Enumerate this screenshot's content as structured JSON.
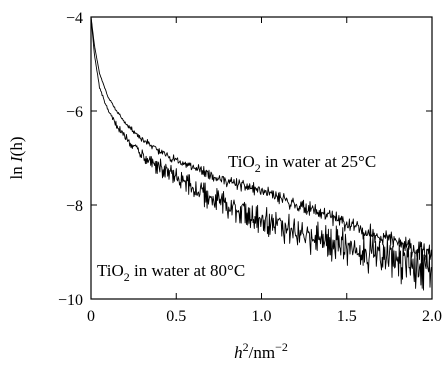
{
  "chart_data": {
    "type": "line",
    "xlabel": {
      "main": "h",
      "sup": "2",
      "unit": "/nm",
      "unit_sup": "−2"
    },
    "ylabel": {
      "prefix": "ln ",
      "italic": "I",
      "suffix": "(h)"
    },
    "xlim": [
      0,
      2.0
    ],
    "ylim": [
      -10,
      -4
    ],
    "xticks": [
      0,
      0.5,
      1.0,
      1.5,
      2.0
    ],
    "xtick_labels": [
      "0",
      "0.5",
      "1.0",
      "1.5",
      "2.0"
    ],
    "yticks": [
      -10,
      -8,
      -6,
      -4
    ],
    "ytick_labels": [
      "−10",
      "−8",
      "−6",
      "−4"
    ],
    "grid": false,
    "series": [
      {
        "annotation": {
          "pre": "TiO",
          "sub": "2",
          "post": " in water at 25°C"
        },
        "noise": 0.12,
        "x": [
          0.0,
          0.02,
          0.05,
          0.1,
          0.15,
          0.2,
          0.3,
          0.4,
          0.5,
          0.6,
          0.7,
          0.8,
          0.9,
          1.0,
          1.1,
          1.2,
          1.3,
          1.4,
          1.5,
          1.6,
          1.7,
          1.8,
          1.9,
          2.0
        ],
        "y": [
          -4.0,
          -4.6,
          -5.2,
          -5.7,
          -6.0,
          -6.25,
          -6.6,
          -6.85,
          -7.05,
          -7.2,
          -7.35,
          -7.5,
          -7.6,
          -7.7,
          -7.85,
          -8.0,
          -8.1,
          -8.25,
          -8.4,
          -8.55,
          -8.65,
          -8.8,
          -8.95,
          -9.05
        ]
      },
      {
        "annotation": {
          "pre": "TiO",
          "sub": "2",
          "post": " in water at 80°C"
        },
        "noise": 0.28,
        "x": [
          0.0,
          0.02,
          0.05,
          0.1,
          0.15,
          0.2,
          0.3,
          0.4,
          0.5,
          0.6,
          0.7,
          0.8,
          0.9,
          1.0,
          1.1,
          1.2,
          1.3,
          1.4,
          1.5,
          1.6,
          1.7,
          1.8,
          1.9,
          2.0
        ],
        "y": [
          -4.0,
          -4.8,
          -5.5,
          -6.0,
          -6.3,
          -6.55,
          -6.9,
          -7.2,
          -7.45,
          -7.65,
          -7.85,
          -8.0,
          -8.15,
          -8.3,
          -8.45,
          -8.6,
          -8.7,
          -8.8,
          -8.9,
          -9.0,
          -9.1,
          -9.2,
          -9.3,
          -9.4
        ]
      }
    ]
  }
}
